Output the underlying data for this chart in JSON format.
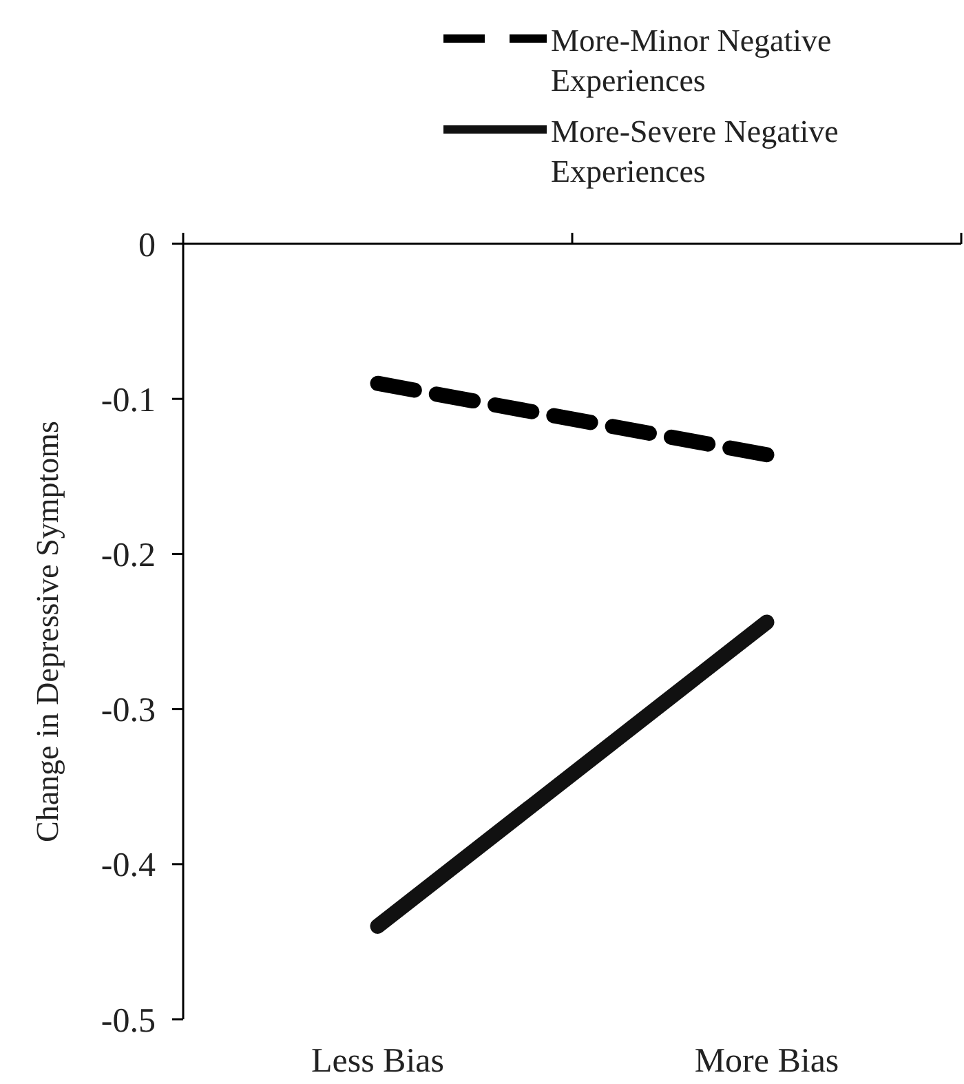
{
  "chart_data": {
    "type": "line",
    "ylabel": "Change in Depressive Symptoms",
    "categories": [
      "Less Bias",
      "More Bias"
    ],
    "series": [
      {
        "name": "More-Minor Negative Experiences",
        "color": "#000000",
        "line_style": "dashed",
        "values": [
          -0.09,
          -0.136
        ]
      },
      {
        "name": "More-Severe Negative Experiences",
        "color": "#111111",
        "line_style": "solid",
        "values": [
          -0.44,
          -0.244
        ]
      }
    ],
    "ylim": [
      -0.5,
      0
    ],
    "yticks": [
      0,
      -0.1,
      -0.2,
      -0.3,
      -0.4,
      -0.5
    ],
    "grid": false,
    "legend": "top right",
    "marker": "none"
  }
}
